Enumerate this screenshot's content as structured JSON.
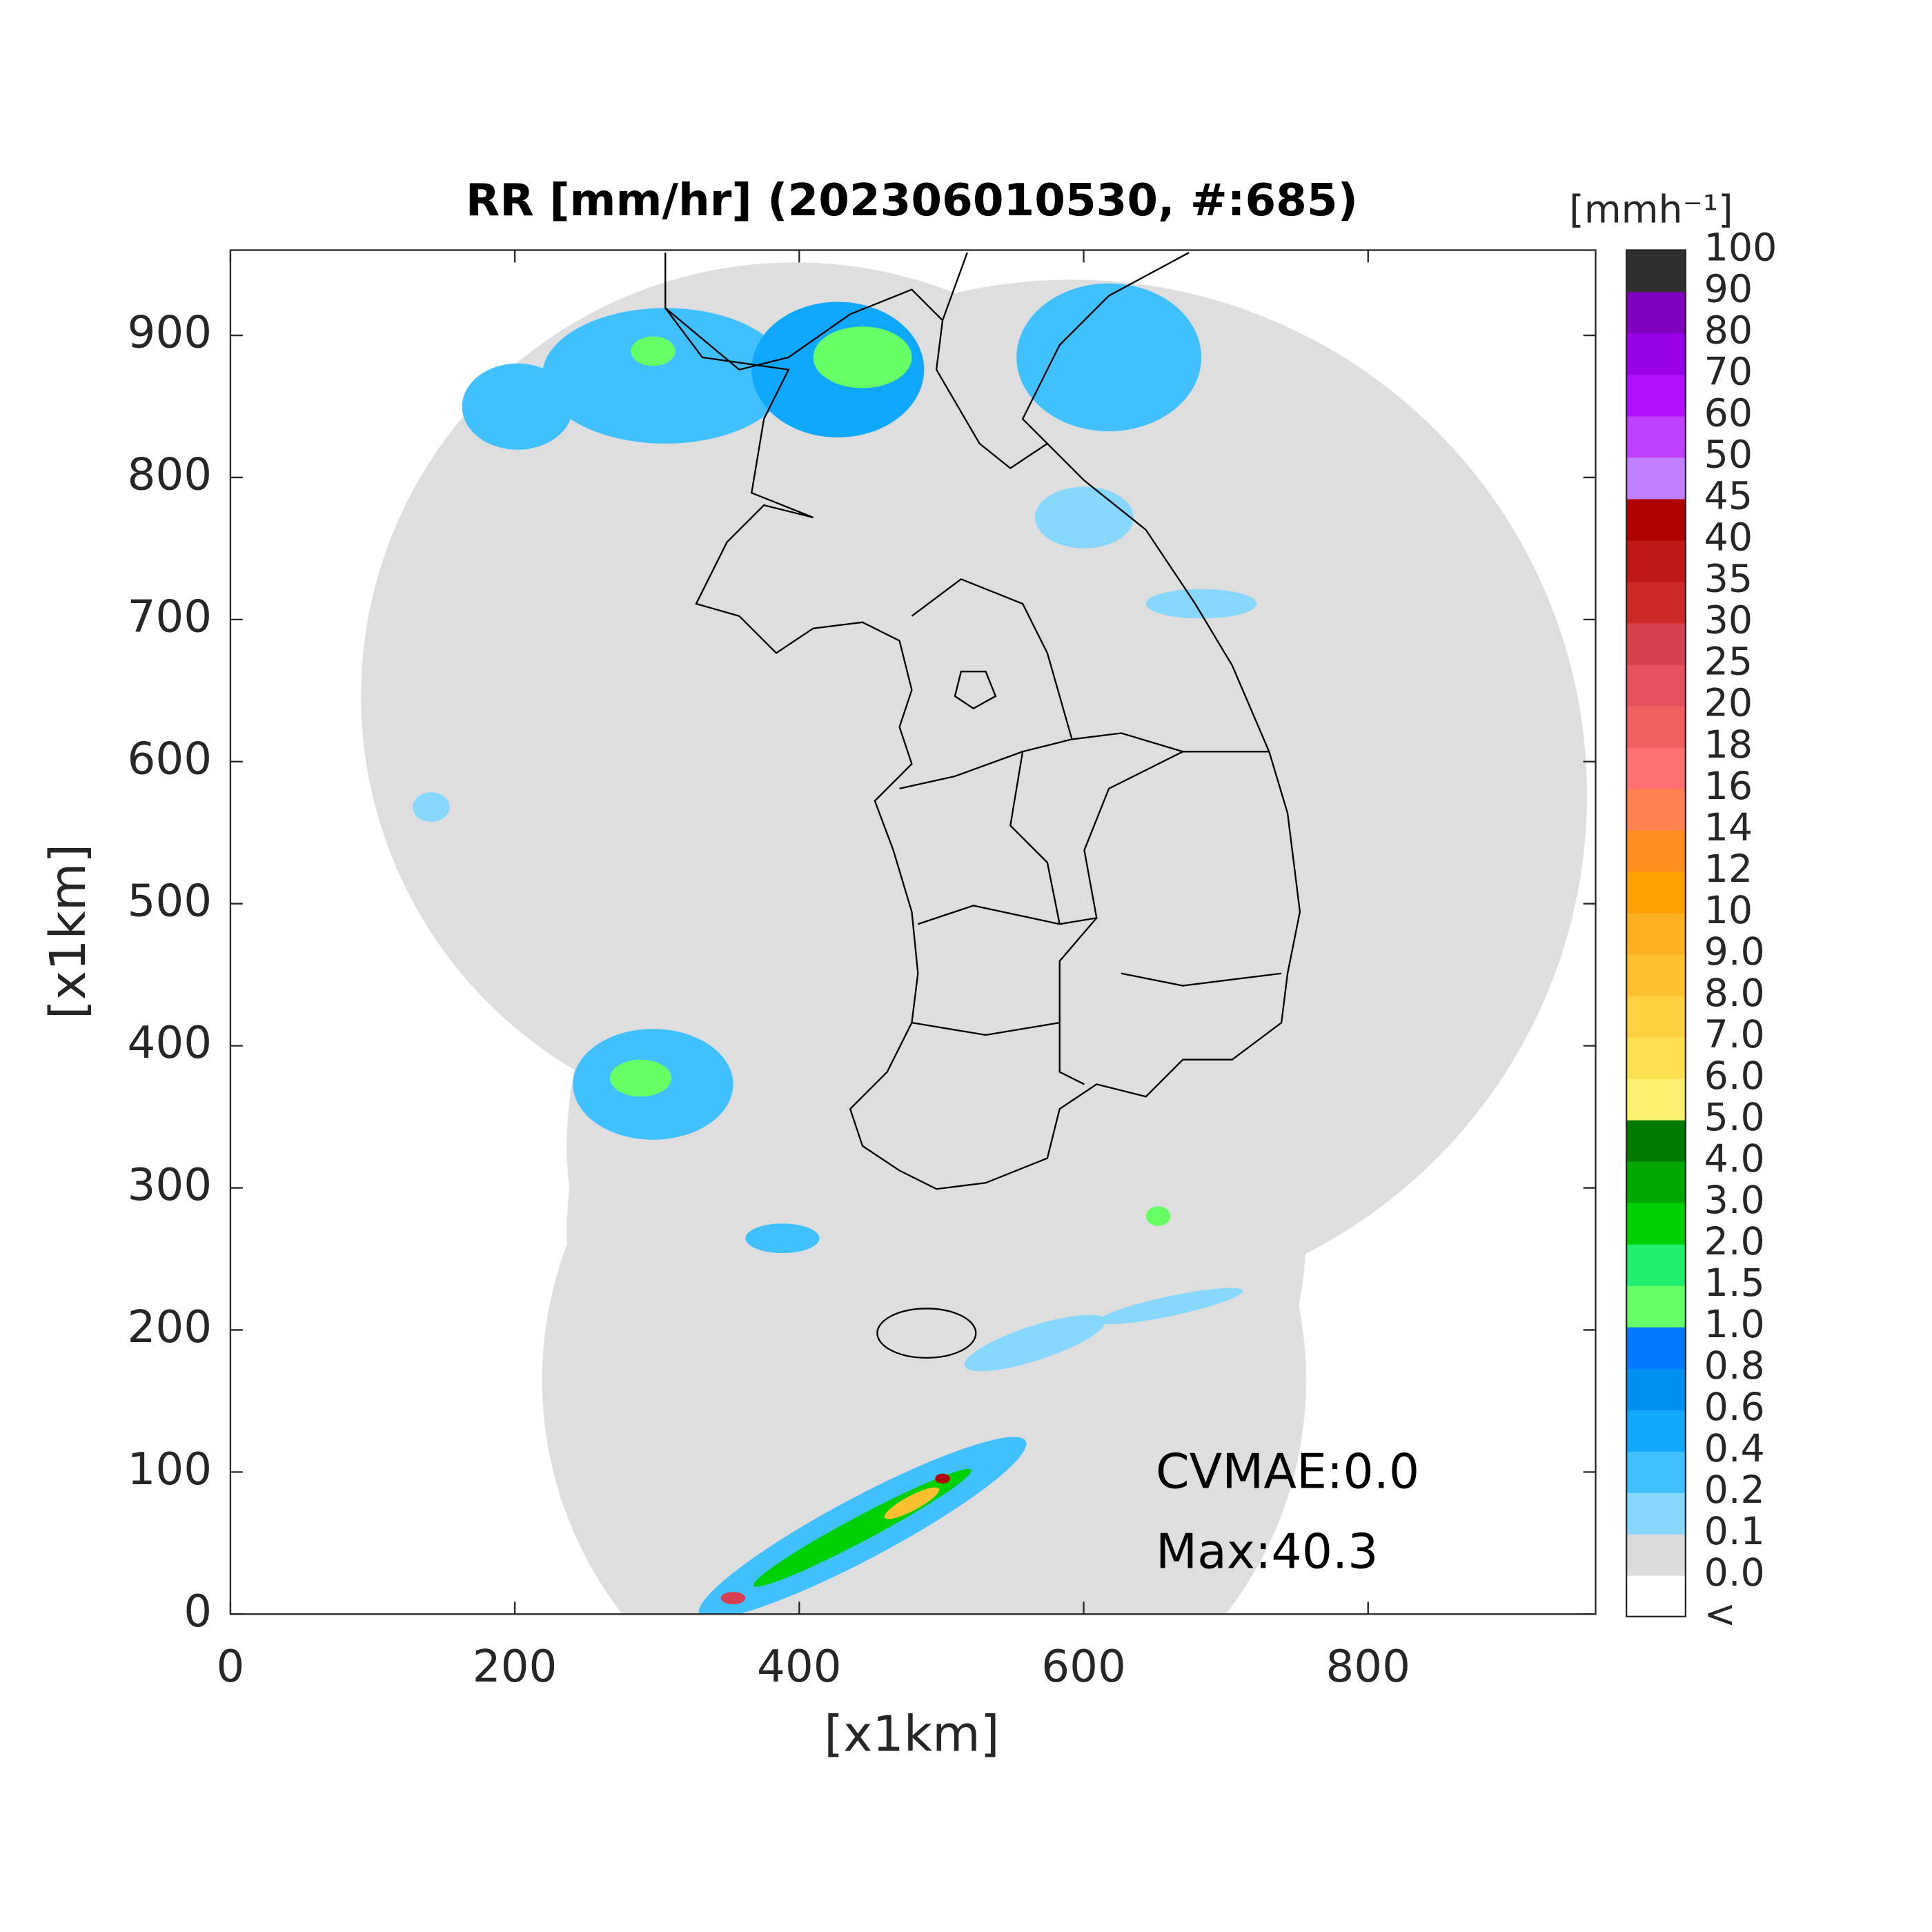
{
  "chart_data": {
    "type": "map",
    "title": "RR [mm/hr] (202306010530, #:685)",
    "xlabel": "[x1km]",
    "ylabel": "[x1km]",
    "xlim": [
      0,
      960
    ],
    "ylim": [
      0,
      960
    ],
    "xticks": [
      0,
      200,
      400,
      600,
      800
    ],
    "yticks": [
      0,
      100,
      200,
      300,
      400,
      500,
      600,
      700,
      800,
      900
    ],
    "annotations": [
      "CVMAE:0.0",
      "Max:40.3"
    ],
    "colorbar": {
      "unit": "[mmh⁻¹]",
      "labels": [
        "<",
        "0.0",
        "0.1",
        "0.2",
        "0.4",
        "0.6",
        "0.8",
        "1.0",
        "1.5",
        "2.0",
        "3.0",
        "4.0",
        "5.0",
        "6.0",
        "7.0",
        "8.0",
        "9.0",
        "10",
        "12",
        "14",
        "16",
        "18",
        "20",
        "25",
        "30",
        "35",
        "40",
        "45",
        "50",
        "60",
        "70",
        "80",
        "90",
        "100"
      ],
      "colors": [
        "#ffffff",
        "#dcdcdc",
        "#87d7ff",
        "#40c0ff",
        "#10a8ff",
        "#0090f0",
        "#0078ff",
        "#66ff66",
        "#20f070",
        "#00d000",
        "#00a800",
        "#007a00",
        "#fff070",
        "#ffe050",
        "#ffd040",
        "#ffc030",
        "#ffb020",
        "#ffa000",
        "#ff9020",
        "#ff8050",
        "#ff7070",
        "#f06060",
        "#e85060",
        "#d84050",
        "#cc2828",
        "#c01818",
        "#b00000",
        "#c080ff",
        "#c040ff",
        "#b010ff",
        "#9800e8",
        "#8000c0",
        "#303030"
      ]
    }
  }
}
